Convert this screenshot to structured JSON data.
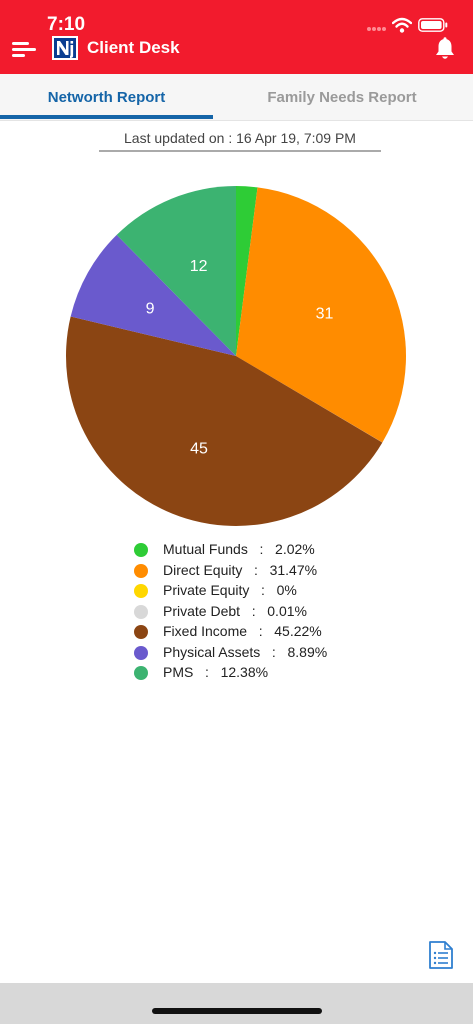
{
  "status_bar": {
    "time": "7:10"
  },
  "header": {
    "title": "Client Desk",
    "logo_text": "Nj"
  },
  "tabs": [
    {
      "label": "Networth Report",
      "active": true
    },
    {
      "label": "Family Needs Report",
      "active": false
    }
  ],
  "last_updated": "Last updated on : 16 Apr 19, 7:09 PM",
  "chart_data": {
    "type": "pie",
    "slices": [
      {
        "name": "Mutual Funds",
        "value": 2.02,
        "label": "",
        "color": "#2ecc36"
      },
      {
        "name": "Direct Equity",
        "value": 31.47,
        "label": "31",
        "color": "#ff8c00"
      },
      {
        "name": "Private Equity",
        "value": 0,
        "label": "",
        "color": "#ffd700"
      },
      {
        "name": "Private Debt",
        "value": 0.01,
        "label": "",
        "color": "#d8d8d8"
      },
      {
        "name": "Fixed Income",
        "value": 45.22,
        "label": "45",
        "color": "#8b4513"
      },
      {
        "name": "Physical Assets",
        "value": 8.89,
        "label": "9",
        "color": "#6a5acd"
      },
      {
        "name": "PMS",
        "value": 12.38,
        "label": "12",
        "color": "#3cb371"
      }
    ]
  },
  "legend": [
    {
      "text": "Mutual Funds   :   2.02%",
      "color": "#2ecc36"
    },
    {
      "text": "Direct Equity   :   31.47%",
      "color": "#ff8c00"
    },
    {
      "text": "Private Equity   :   0%",
      "color": "#ffd700"
    },
    {
      "text": "Private Debt   :   0.01%",
      "color": "#d8d8d8"
    },
    {
      "text": "Fixed Income   :   45.22%",
      "color": "#8b4513"
    },
    {
      "text": "Physical Assets   :   8.89%",
      "color": "#6a5acd"
    },
    {
      "text": "PMS   :   12.38%",
      "color": "#3cb371"
    }
  ],
  "colors": {
    "header": "#f21b2d",
    "tab_active": "#1565a8"
  },
  "icons": [
    "menu-icon",
    "logo-icon",
    "bell-icon",
    "report-icon",
    "wifi-icon",
    "battery-icon"
  ]
}
